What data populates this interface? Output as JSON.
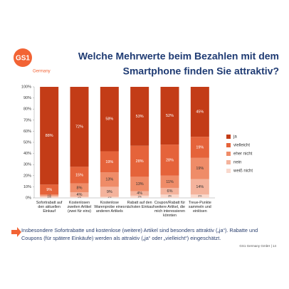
{
  "logo": {
    "mark": "GS1",
    "subtitle": "Germany"
  },
  "chart_data": {
    "type": "stacked_bar",
    "title": [
      "Welche Mehrwerte beim Bezahlen mit dem",
      "Smartphone finden Sie attraktiv?"
    ],
    "categories": [
      "Sofortrabatt auf den aktuellen Einkauf",
      "Kostenlosen zweiten Artikel (zwei für eins)",
      "Kostenlose Warenprobe eines anderen Artikels",
      "Rabatt auf den nächsten Einkauf",
      "Coupon/Rabatt für weitere Artikel, die mich interessieren könnten",
      "Treue-Punkte sammeln und einlösen"
    ],
    "series": [
      {
        "name": "weiß nicht",
        "color": "#f9d9cd",
        "values": [
          1,
          1,
          1,
          2,
          3,
          3
        ],
        "value_labels": [
          "1%",
          "1%",
          "1%",
          "2%",
          "3%",
          "3%"
        ]
      },
      {
        "name": "nein",
        "color": "#f4b39c",
        "values": [
          1,
          4,
          9,
          4,
          6,
          14
        ],
        "value_labels": [
          "1%",
          "4%",
          "9%",
          "4%",
          "6%",
          "14%"
        ]
      },
      {
        "name": "eher nicht",
        "color": "#ef8c68",
        "values": [
          1,
          8,
          13,
          13,
          11,
          19
        ],
        "value_labels": [
          "1%",
          "8%",
          "13%",
          "13%",
          "11%",
          "19%"
        ]
      },
      {
        "name": "vielleicht",
        "color": "#e5633a",
        "values": [
          9,
          15,
          19,
          28,
          28,
          19
        ],
        "value_labels": [
          "9%",
          "15%",
          "19%",
          "28%",
          "28%",
          "19%"
        ]
      },
      {
        "name": "ja",
        "color": "#c33c17",
        "values": [
          88,
          72,
          58,
          53,
          52,
          45
        ],
        "value_labels": [
          "88%",
          "72%",
          "58%",
          "53%",
          "52%",
          "45%"
        ]
      }
    ],
    "ylim": [
      0,
      100
    ],
    "yticks": [
      {
        "value": 0,
        "label": "0%"
      },
      {
        "value": 10,
        "label": "10%"
      },
      {
        "value": 20,
        "label": "20%"
      },
      {
        "value": 30,
        "label": "30%"
      },
      {
        "value": 40,
        "label": "40%"
      },
      {
        "value": 50,
        "label": "50%"
      },
      {
        "value": 60,
        "label": "60%"
      },
      {
        "value": 70,
        "label": "70%"
      },
      {
        "value": 80,
        "label": "80%"
      },
      {
        "value": 90,
        "label": "90%"
      },
      {
        "value": 100,
        "label": "100%"
      }
    ],
    "grid": false,
    "legend": "right"
  },
  "footnote": "Insbesondere Sofortrabatte und kostenlose (weitere) Artikel sind besonders attraktiv („ja“). Rabatte und Coupons (für spätere Einkäufe) werden als attraktiv („ja“ oder „vielleicht“) eingeschätzt.",
  "footer": "GS1 Germany GmbH | 14"
}
